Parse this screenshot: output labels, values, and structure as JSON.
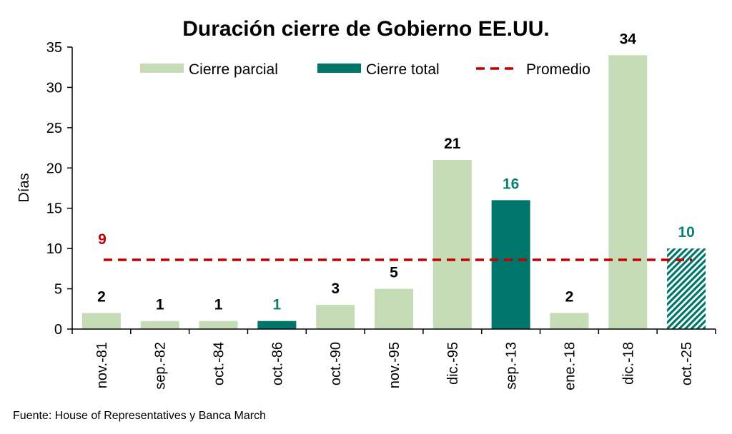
{
  "chart_data": {
    "type": "bar",
    "title": "Duración cierre de Gobierno EE.UU.",
    "xlabel": "",
    "ylabel": "Días",
    "ylim": [
      0,
      35
    ],
    "yticks": [
      0,
      5,
      10,
      15,
      20,
      25,
      30,
      35
    ],
    "grid": false,
    "legend_position": "top",
    "categories": [
      "nov.-81",
      "sep.-82",
      "oct.-84",
      "oct.-86",
      "oct.-90",
      "nov.-95",
      "dic.-95",
      "sep.-13",
      "ene.-18",
      "dic.-18",
      "oct.-25"
    ],
    "values": [
      2,
      1,
      1,
      1,
      3,
      5,
      21,
      16,
      2,
      34,
      10
    ],
    "types": [
      "parcial",
      "parcial",
      "parcial",
      "total",
      "parcial",
      "parcial",
      "parcial",
      "total",
      "parcial",
      "parcial",
      "total-ongoing"
    ],
    "data_labels": [
      "2",
      "1",
      "1",
      "1",
      "3",
      "5",
      "21",
      "16",
      "2",
      "34",
      "10"
    ],
    "average": {
      "value": 8.6,
      "label": "9"
    },
    "legend": [
      {
        "name": "Cierre parcial",
        "kind": "bar",
        "color": "#c5dcb6"
      },
      {
        "name": "Cierre total",
        "kind": "bar",
        "color": "#00766a"
      },
      {
        "name": "Promedio",
        "kind": "dashed-line",
        "color": "#c00000"
      }
    ],
    "colors": {
      "parcial": "#c5dcb6",
      "total": "#00766a",
      "average": "#c00000",
      "label_default": "#000000",
      "label_total": "#0d7f72"
    }
  },
  "source": "Fuente: House of Representatives  y Banca March"
}
